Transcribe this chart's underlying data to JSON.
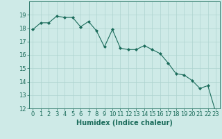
{
  "x": [
    0,
    1,
    2,
    3,
    4,
    5,
    6,
    7,
    8,
    9,
    10,
    11,
    12,
    13,
    14,
    15,
    16,
    17,
    18,
    19,
    20,
    21,
    22,
    23
  ],
  "y": [
    17.9,
    18.4,
    18.4,
    18.9,
    18.8,
    18.8,
    18.1,
    18.5,
    17.8,
    16.6,
    17.9,
    16.5,
    16.4,
    16.4,
    16.7,
    16.4,
    16.1,
    15.4,
    14.6,
    14.5,
    14.1,
    13.5,
    13.7,
    11.7
  ],
  "line_color": "#1a6b5a",
  "marker": "D",
  "marker_size": 2,
  "bg_color": "#ceeae7",
  "grid_color": "#aed4d0",
  "axis_color": "#1a6b5a",
  "xlabel": "Humidex (Indice chaleur)",
  "xlim_min": -0.5,
  "xlim_max": 23.5,
  "ylim_min": 12,
  "ylim_max": 20,
  "yticks": [
    12,
    13,
    14,
    15,
    16,
    17,
    18,
    19
  ],
  "xticks": [
    0,
    1,
    2,
    3,
    4,
    5,
    6,
    7,
    8,
    9,
    10,
    11,
    12,
    13,
    14,
    15,
    16,
    17,
    18,
    19,
    20,
    21,
    22,
    23
  ],
  "font_color": "#1a6b5a",
  "tick_fontsize": 6,
  "xlabel_fontsize": 7
}
